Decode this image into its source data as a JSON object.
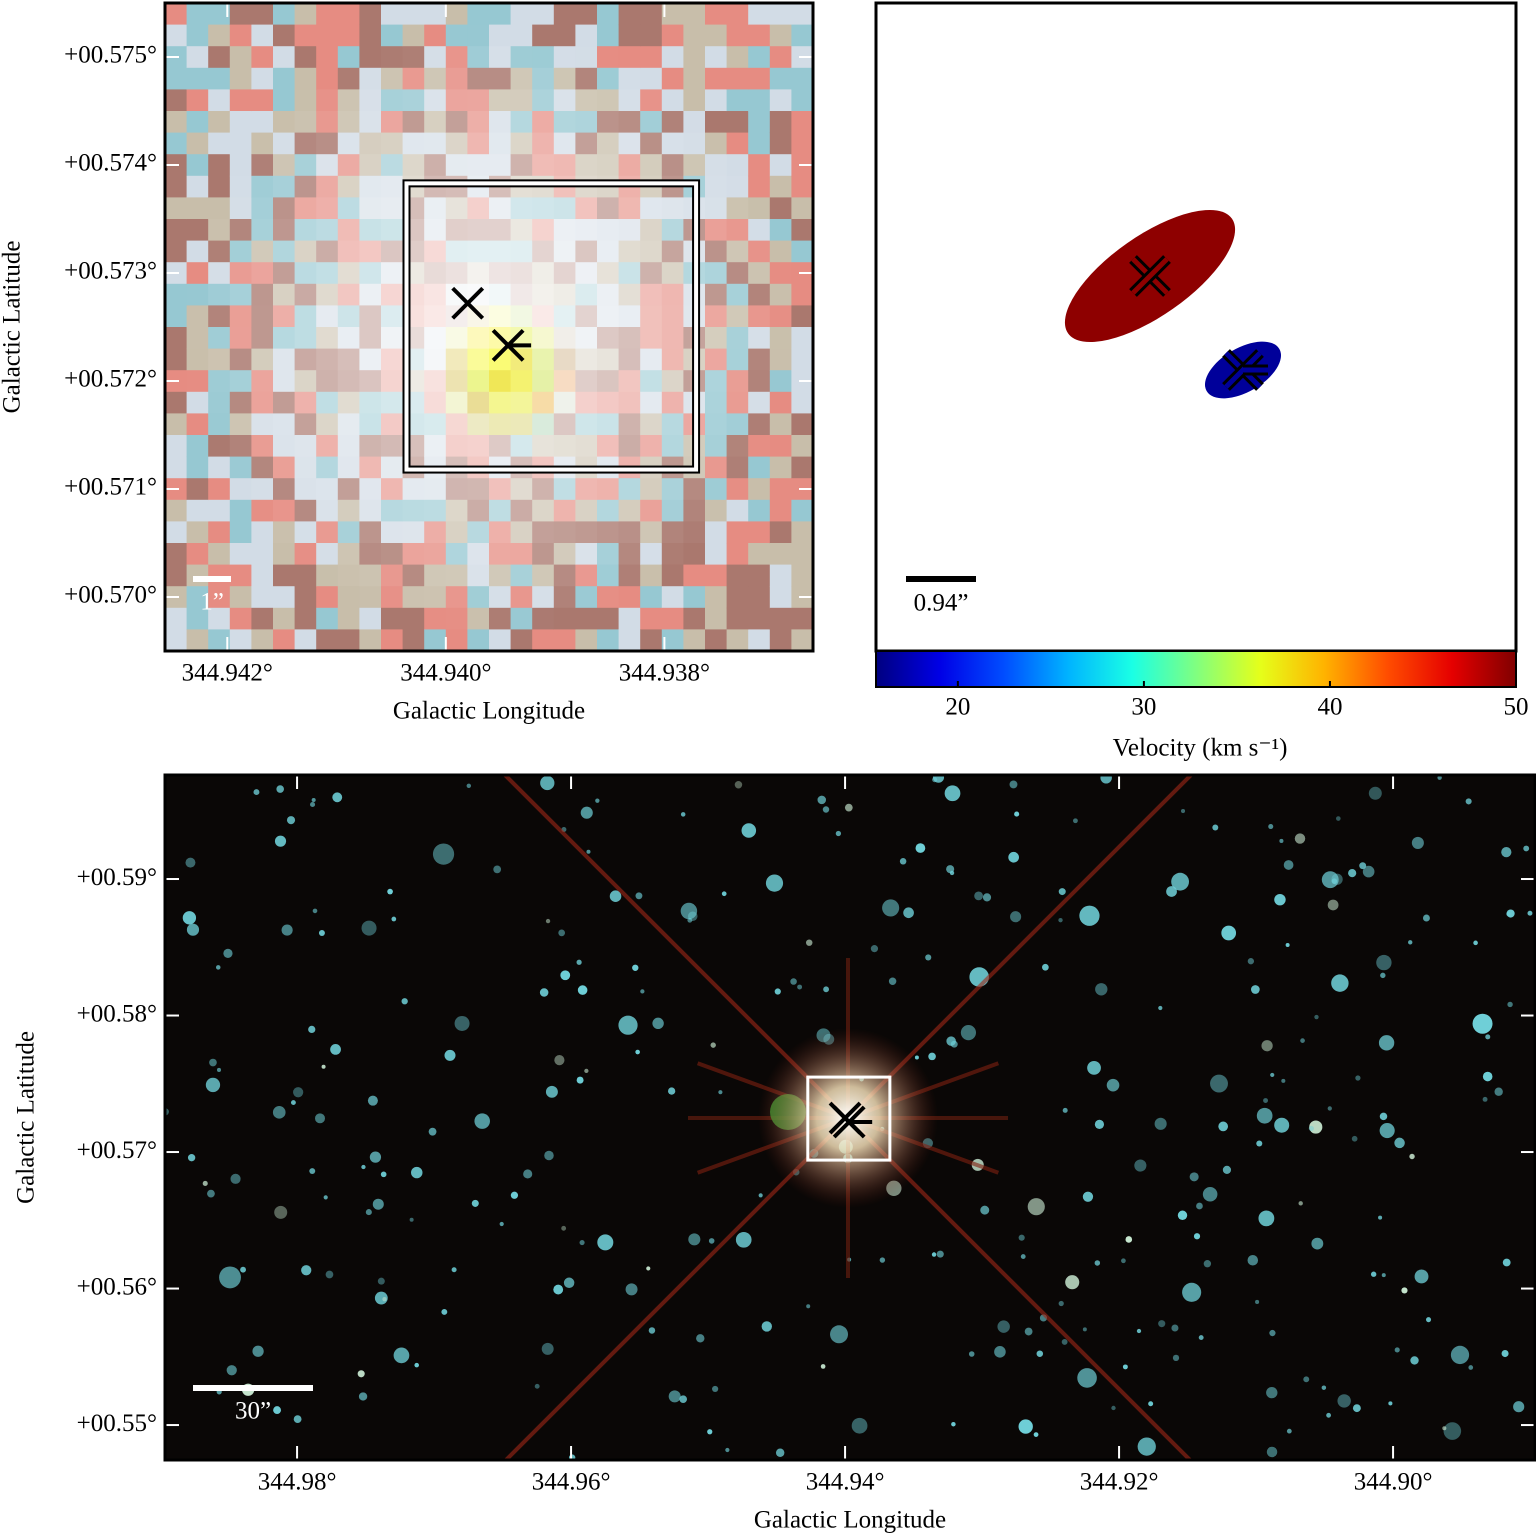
{
  "chart_data": [
    {
      "type": "image",
      "x_label": "Galactic Longitude",
      "y_label": "Galactic Latitude",
      "xlim": [
        344.94257,
        344.93664
      ],
      "ylim": [
        0.5695,
        0.5755
      ],
      "xticks": [
        {
          "value": 344.942,
          "label": "344.942°"
        },
        {
          "value": 344.94,
          "label": "344.940°"
        },
        {
          "value": 344.938,
          "label": "344.938°"
        }
      ],
      "yticks": [
        {
          "value": 0.57,
          "label": "+00.570°"
        },
        {
          "value": 0.571,
          "label": "+00.571°"
        },
        {
          "value": 0.572,
          "label": "+00.572°"
        },
        {
          "value": 0.573,
          "label": "+00.573°"
        },
        {
          "value": 0.574,
          "label": "+00.574°"
        },
        {
          "value": 0.575,
          "label": "+00.575°"
        }
      ],
      "box_x": [
        344.94036,
        344.93771
      ],
      "box_y": [
        0.57383,
        0.57118
      ],
      "markers": {
        "x": [
          344.9398,
          344.93943
        ],
        "y": [
          0.57272,
          0.57233
        ]
      },
      "scale_bar_label": "1”"
    },
    {
      "type": "ellipses",
      "colorbar_label": "Velocity (km s⁻¹)",
      "clim": [
        15.6,
        50
      ],
      "cticks": [
        20,
        30,
        40,
        50
      ],
      "velocities": [
        49.5,
        16.5
      ],
      "scale_bar_label": "0.94”"
    },
    {
      "type": "image",
      "x_label": "Galactic Longitude",
      "y_label": "Galactic Latitude",
      "xlim": [
        344.98964,
        344.88964
      ],
      "ylim": [
        0.54744,
        0.59762
      ],
      "xticks": [
        {
          "value": 344.98,
          "label": "344.98°"
        },
        {
          "value": 344.96,
          "label": "344.96°"
        },
        {
          "value": 344.94,
          "label": "344.94°"
        },
        {
          "value": 344.92,
          "label": "344.92°"
        },
        {
          "value": 344.9,
          "label": "344.90°"
        }
      ],
      "yticks": [
        {
          "value": 0.55,
          "label": "+00.55°"
        },
        {
          "value": 0.56,
          "label": "+00.56°"
        },
        {
          "value": 0.57,
          "label": "+00.57°"
        },
        {
          "value": 0.58,
          "label": "+00.58°"
        },
        {
          "value": 0.59,
          "label": "+00.59°"
        }
      ],
      "box_x": [
        344.94272,
        344.93673
      ],
      "box_y": [
        0.57549,
        0.56941
      ],
      "markers": {
        "x": [
          344.94,
          344.9397
        ],
        "y": [
          0.57249,
          0.5722
        ]
      },
      "scale_bar_label": "30”"
    }
  ]
}
